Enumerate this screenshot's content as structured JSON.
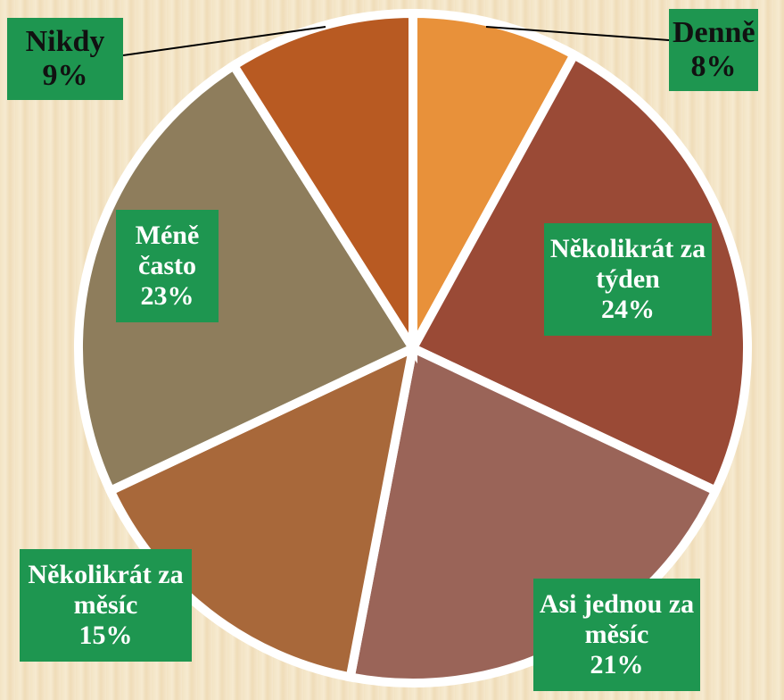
{
  "chart_data": {
    "type": "pie",
    "categories": [
      "Denně",
      "Několikrát za týden",
      "Asi jednou za měsíc",
      "Několikrát za měsíc",
      "Méně často",
      "Nikdy"
    ],
    "values": [
      8,
      24,
      21,
      15,
      23,
      9
    ],
    "value_labels": [
      "8%",
      "24%",
      "21%",
      "15%",
      "23%",
      "9%"
    ],
    "colors": [
      "#e8913a",
      "#9a4a36",
      "#9a6458",
      "#a8683a",
      "#8e7d5c",
      "#b85a22"
    ]
  }
}
